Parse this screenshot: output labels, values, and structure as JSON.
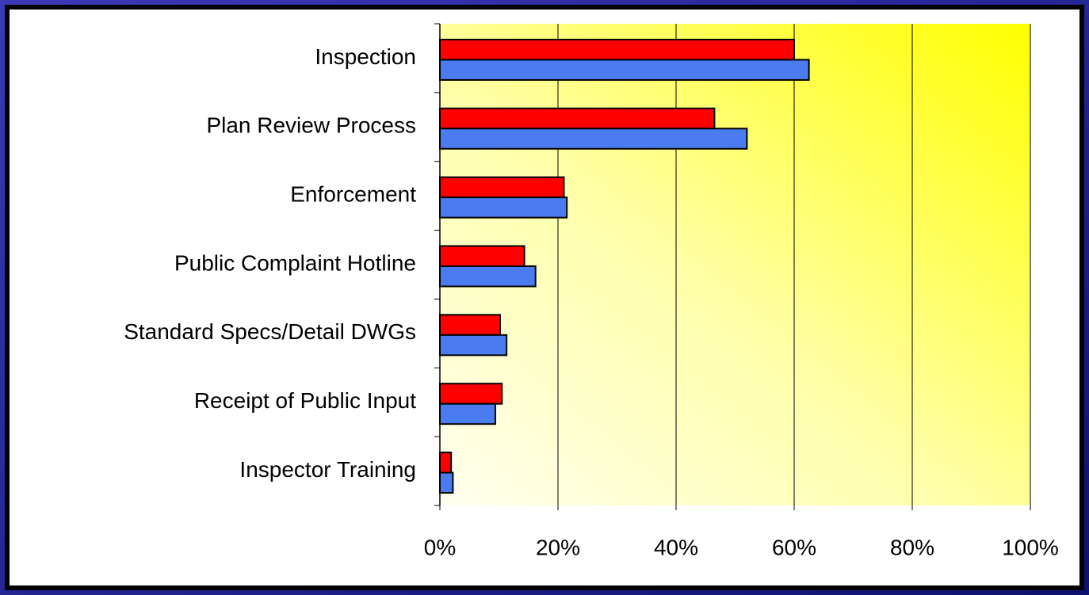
{
  "chart_data": {
    "type": "hbar",
    "categories": [
      "Inspection",
      "Plan Review Process",
      "Enforcement",
      "Public Complaint Hotline",
      "Standard Specs/Detail DWGs",
      "Receipt of Public Input",
      "Inspector Training"
    ],
    "series": [
      {
        "color": "#ff0000",
        "values": [
          60,
          46.5,
          21,
          14.3,
          10.2,
          10.5,
          1.9
        ]
      },
      {
        "color": "#4a7cf0",
        "values": [
          62.5,
          52,
          21.5,
          16.2,
          11.3,
          9.4,
          2.2
        ]
      }
    ],
    "xlim": [
      0,
      100
    ],
    "xticks": [
      {
        "value": 0,
        "label": "0%"
      },
      {
        "value": 20,
        "label": "20%"
      },
      {
        "value": 40,
        "label": "40%"
      },
      {
        "value": 60,
        "label": "60%"
      },
      {
        "value": 80,
        "label": "80%"
      },
      {
        "value": 100,
        "label": "100%"
      }
    ],
    "grid": true
  }
}
